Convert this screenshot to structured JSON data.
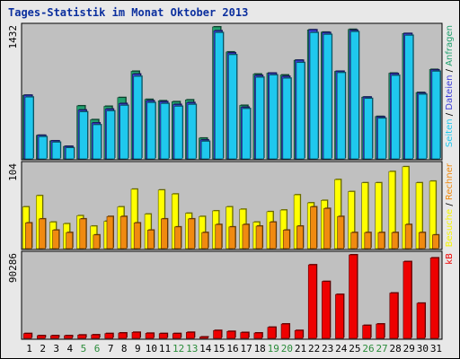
{
  "title": "Tages-Statistik im Monat Oktober 2013",
  "colors": {
    "frame_bg": "#e8e8e8",
    "panel_bg": "#c0c0c0",
    "hits": "#21a06e",
    "files": "#3d3dd9",
    "pages": "#1fc8ee",
    "visits": "#ffff00",
    "sites": "#f08a10",
    "kbytes": "#ee0000",
    "weekend_label": "#2a8c3a",
    "weekday_label": "#000000"
  },
  "chart_data": [
    {
      "type": "bar",
      "panel": "top",
      "y_max_label": "1432",
      "ylim": [
        0,
        1432
      ],
      "right_label_parts": [
        {
          "text": "Seiten",
          "color": "#1fc8ee"
        },
        {
          "text": " / ",
          "color": "#000000"
        },
        {
          "text": "Dateien",
          "color": "#3d3dd9"
        },
        {
          "text": " / ",
          "color": "#000000"
        },
        {
          "text": "Anfragen",
          "color": "#21a06e"
        }
      ],
      "categories": [
        "1",
        "2",
        "3",
        "4",
        "5",
        "6",
        "7",
        "8",
        "9",
        "10",
        "11",
        "12",
        "13",
        "14",
        "15",
        "16",
        "17",
        "18",
        "19",
        "20",
        "21",
        "22",
        "23",
        "24",
        "25",
        "26",
        "27",
        "28",
        "29",
        "30",
        "31"
      ],
      "series": [
        {
          "name": "Anfragen",
          "color": "#21a06e",
          "values": [
            690,
            255,
            195,
            135,
            575,
            425,
            570,
            665,
            950,
            645,
            630,
            620,
            640,
            225,
            1432,
            1160,
            580,
            920,
            930,
            910,
            1070,
            1400,
            1375,
            950,
            1405,
            670,
            460,
            930,
            1360,
            720,
            970
          ]
        },
        {
          "name": "Dateien",
          "color": "#3d3dd9",
          "values": [
            690,
            255,
            195,
            135,
            530,
            390,
            540,
            600,
            920,
            630,
            620,
            590,
            610,
            205,
            1390,
            1150,
            560,
            905,
            930,
            895,
            1070,
            1400,
            1370,
            950,
            1395,
            670,
            455,
            925,
            1360,
            715,
            965
          ]
        },
        {
          "name": "Seiten",
          "color": "#1fc8ee",
          "values": [
            670,
            240,
            180,
            120,
            510,
            370,
            520,
            580,
            895,
            610,
            600,
            570,
            590,
            190,
            1370,
            1130,
            545,
            885,
            910,
            875,
            1045,
            1370,
            1350,
            935,
            1380,
            655,
            440,
            905,
            1340,
            700,
            950
          ]
        }
      ]
    },
    {
      "type": "bar",
      "panel": "middle",
      "y_max_label": "104",
      "ylim": [
        0,
        104
      ],
      "right_label_parts": [
        {
          "text": "Besuche",
          "color": "#f5f500"
        },
        {
          "text": " / ",
          "color": "#000000"
        },
        {
          "text": "Rechner",
          "color": "#f08a10"
        }
      ],
      "categories": [
        "1",
        "2",
        "3",
        "4",
        "5",
        "6",
        "7",
        "8",
        "9",
        "10",
        "11",
        "12",
        "13",
        "14",
        "15",
        "16",
        "17",
        "18",
        "19",
        "20",
        "21",
        "22",
        "23",
        "24",
        "25",
        "26",
        "27",
        "28",
        "29",
        "30",
        "31"
      ],
      "series": [
        {
          "name": "Besuche",
          "color": "#ffff00",
          "values": [
            52,
            66,
            33,
            31,
            41,
            28,
            34,
            52,
            74,
            43,
            73,
            68,
            44,
            40,
            47,
            52,
            49,
            33,
            46,
            48,
            67,
            57,
            60,
            86,
            71,
            82,
            82,
            96,
            102,
            82,
            84
          ]
        },
        {
          "name": "Rechner",
          "color": "#f08a10",
          "values": [
            32,
            37,
            23,
            20,
            37,
            17,
            40,
            40,
            32,
            23,
            37,
            27,
            37,
            20,
            30,
            27,
            30,
            28,
            33,
            23,
            28,
            52,
            50,
            40,
            20,
            20,
            20,
            20,
            30,
            20,
            17
          ]
        }
      ]
    },
    {
      "type": "bar",
      "panel": "bottom",
      "y_max_label": "90286",
      "ylim": [
        0,
        90286
      ],
      "right_label_parts": [
        {
          "text": "kB",
          "color": "#ee0000"
        }
      ],
      "categories": [
        "1",
        "2",
        "3",
        "4",
        "5",
        "6",
        "7",
        "8",
        "9",
        "10",
        "11",
        "12",
        "13",
        "14",
        "15",
        "16",
        "17",
        "18",
        "19",
        "20",
        "21",
        "22",
        "23",
        "24",
        "25",
        "26",
        "27",
        "28",
        "29",
        "30",
        "31"
      ],
      "series": [
        {
          "name": "kB",
          "color": "#ee0000",
          "values": [
            5200,
            2900,
            2900,
            2900,
            3600,
            3800,
            5200,
            5800,
            6500,
            5500,
            5200,
            5200,
            6500,
            1500,
            8500,
            7500,
            6300,
            5800,
            12000,
            15500,
            8500,
            79500,
            61500,
            47500,
            90286,
            14000,
            15500,
            49000,
            83000,
            38000,
            87000
          ]
        }
      ]
    }
  ],
  "x_labels": [
    {
      "text": "1",
      "weekend": false
    },
    {
      "text": "2",
      "weekend": false
    },
    {
      "text": "3",
      "weekend": false
    },
    {
      "text": "4",
      "weekend": false
    },
    {
      "text": "5",
      "weekend": true
    },
    {
      "text": "6",
      "weekend": true
    },
    {
      "text": "7",
      "weekend": false
    },
    {
      "text": "8",
      "weekend": false
    },
    {
      "text": "9",
      "weekend": false
    },
    {
      "text": "10",
      "weekend": false
    },
    {
      "text": "11",
      "weekend": false
    },
    {
      "text": "12",
      "weekend": true
    },
    {
      "text": "13",
      "weekend": true
    },
    {
      "text": "14",
      "weekend": false
    },
    {
      "text": "15",
      "weekend": false
    },
    {
      "text": "16",
      "weekend": false
    },
    {
      "text": "17",
      "weekend": false
    },
    {
      "text": "18",
      "weekend": false
    },
    {
      "text": "19",
      "weekend": true
    },
    {
      "text": "20",
      "weekend": true
    },
    {
      "text": "21",
      "weekend": false
    },
    {
      "text": "22",
      "weekend": false
    },
    {
      "text": "23",
      "weekend": false
    },
    {
      "text": "24",
      "weekend": false
    },
    {
      "text": "25",
      "weekend": false
    },
    {
      "text": "26",
      "weekend": true
    },
    {
      "text": "27",
      "weekend": true
    },
    {
      "text": "28",
      "weekend": false
    },
    {
      "text": "29",
      "weekend": false
    },
    {
      "text": "30",
      "weekend": false
    },
    {
      "text": "31",
      "weekend": false
    }
  ]
}
